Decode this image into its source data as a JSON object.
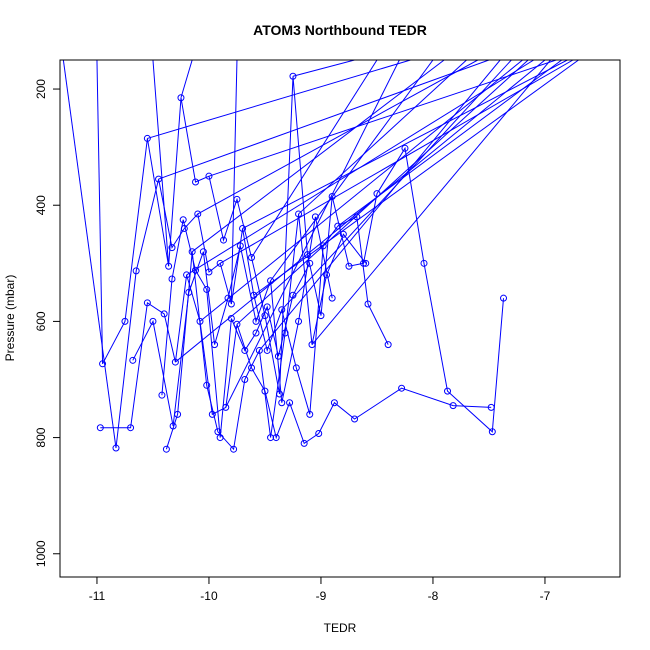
{
  "chart_data": {
    "type": "line",
    "title": "ATOM3 Northbound TEDR",
    "xlabel": "TEDR",
    "ylabel": "Pressure (mbar)",
    "xlim": [
      -11.33,
      -6.33
    ],
    "ylim": [
      1040,
      150
    ],
    "y_inverted": true,
    "x_ticks": [
      {
        "value": -11,
        "label": "-11"
      },
      {
        "value": -10,
        "label": "-10"
      },
      {
        "value": -9,
        "label": "-9"
      },
      {
        "value": -8,
        "label": "-8"
      },
      {
        "value": -7,
        "label": "-7"
      }
    ],
    "y_ticks": [
      {
        "value": 200,
        "label": "200"
      },
      {
        "value": 400,
        "label": "400"
      },
      {
        "value": 600,
        "label": "600"
      },
      {
        "value": 800,
        "label": "800"
      },
      {
        "value": 1000,
        "label": "1000"
      }
    ],
    "grid": false,
    "legend": "none",
    "series_color": "#0000ff",
    "marker": "open-circle",
    "series": [
      {
        "points": [
          {
            "x": -10.95,
            "y": 673
          },
          {
            "x": -10.75,
            "y": 600
          },
          {
            "x": -10.55,
            "y": 285
          },
          {
            "x": -10.36,
            "y": 505
          },
          {
            "x": -10.25,
            "y": 215
          },
          {
            "x": -10.12,
            "y": 360
          },
          {
            "x": -10.0,
            "y": 350
          },
          {
            "x": -9.87,
            "y": 460
          },
          {
            "x": -9.75,
            "y": 390
          },
          {
            "x": -9.62,
            "y": 490
          },
          {
            "x": -9.5,
            "y": 590
          },
          {
            "x": -9.37,
            "y": 725
          },
          {
            "x": -9.25,
            "y": 178
          },
          {
            "x": -9.12,
            "y": 485
          },
          {
            "x": -9.0,
            "y": 590
          },
          {
            "x": -8.9,
            "y": 385
          },
          {
            "x": -8.75,
            "y": 505
          },
          {
            "x": -8.62,
            "y": 500
          },
          {
            "x": -8.5,
            "y": 380
          },
          {
            "x": -8.25,
            "y": 302
          },
          {
            "x": -8.08,
            "y": 500
          },
          {
            "x": -7.87,
            "y": 720
          },
          {
            "x": -7.47,
            "y": 790
          },
          {
            "x": -7.37,
            "y": 560
          }
        ]
      },
      {
        "points": [
          {
            "x": -10.97,
            "y": 783
          },
          {
            "x": -10.7,
            "y": 783
          },
          {
            "x": -10.55,
            "y": 568
          },
          {
            "x": -10.4,
            "y": 587
          },
          {
            "x": -10.3,
            "y": 670
          },
          {
            "x": -10.2,
            "y": 520
          },
          {
            "x": -10.08,
            "y": 600
          },
          {
            "x": -9.97,
            "y": 760
          },
          {
            "x": -9.85,
            "y": 748
          },
          {
            "x": -9.75,
            "y": 605
          },
          {
            "x": -9.62,
            "y": 680
          },
          {
            "x": -9.5,
            "y": 720
          },
          {
            "x": -9.4,
            "y": 800
          },
          {
            "x": -9.28,
            "y": 740
          },
          {
            "x": -9.15,
            "y": 810
          },
          {
            "x": -9.02,
            "y": 793
          },
          {
            "x": -8.88,
            "y": 740
          },
          {
            "x": -8.7,
            "y": 768
          },
          {
            "x": -8.28,
            "y": 715
          },
          {
            "x": -7.82,
            "y": 745
          },
          {
            "x": -7.48,
            "y": 748
          }
        ]
      },
      {
        "points": [
          {
            "x": -10.83,
            "y": 818
          },
          {
            "x": -10.65,
            "y": 513
          },
          {
            "x": -10.45,
            "y": 355
          },
          {
            "x": -10.33,
            "y": 473
          },
          {
            "x": -10.22,
            "y": 440
          },
          {
            "x": -10.1,
            "y": 415
          },
          {
            "x": -10.0,
            "y": 515
          },
          {
            "x": -9.9,
            "y": 500
          },
          {
            "x": -9.8,
            "y": 570
          },
          {
            "x": -9.7,
            "y": 440
          },
          {
            "x": -9.6,
            "y": 555
          },
          {
            "x": -9.48,
            "y": 650
          },
          {
            "x": -9.35,
            "y": 580
          },
          {
            "x": -9.22,
            "y": 680
          },
          {
            "x": -9.1,
            "y": 760
          },
          {
            "x": -8.98,
            "y": 470
          },
          {
            "x": -8.85,
            "y": 436
          },
          {
            "x": -8.68,
            "y": 420
          },
          {
            "x": -8.58,
            "y": 570
          },
          {
            "x": -8.4,
            "y": 640
          }
        ]
      },
      {
        "points": [
          {
            "x": -10.38,
            "y": 820
          },
          {
            "x": -10.28,
            "y": 760
          },
          {
            "x": -10.15,
            "y": 480
          },
          {
            "x": -10.02,
            "y": 710
          },
          {
            "x": -9.92,
            "y": 790
          },
          {
            "x": -9.78,
            "y": 820
          },
          {
            "x": -9.68,
            "y": 700
          },
          {
            "x": -9.55,
            "y": 650
          },
          {
            "x": -9.45,
            "y": 800
          },
          {
            "x": -9.32,
            "y": 620
          },
          {
            "x": -9.2,
            "y": 415
          },
          {
            "x": -9.08,
            "y": 640
          },
          {
            "x": -8.95,
            "y": 520
          },
          {
            "x": -8.8,
            "y": 450
          },
          {
            "x": -8.6,
            "y": 500
          }
        ]
      },
      {
        "points": [
          {
            "x": -10.68,
            "y": 667
          },
          {
            "x": -10.5,
            "y": 600
          },
          {
            "x": -10.32,
            "y": 780
          },
          {
            "x": -10.18,
            "y": 550
          },
          {
            "x": -10.05,
            "y": 480
          },
          {
            "x": -9.95,
            "y": 640
          },
          {
            "x": -9.83,
            "y": 560
          },
          {
            "x": -9.72,
            "y": 470
          },
          {
            "x": -9.58,
            "y": 600
          },
          {
            "x": -9.45,
            "y": 530
          },
          {
            "x": -9.35,
            "y": 740
          },
          {
            "x": -9.2,
            "y": 600
          },
          {
            "x": -9.05,
            "y": 420
          },
          {
            "x": -8.9,
            "y": 560
          }
        ]
      },
      {
        "points": [
          {
            "x": -10.42,
            "y": 727
          },
          {
            "x": -10.33,
            "y": 527
          },
          {
            "x": -10.23,
            "y": 425
          },
          {
            "x": -10.12,
            "y": 512
          },
          {
            "x": -10.02,
            "y": 545
          },
          {
            "x": -9.9,
            "y": 800
          },
          {
            "x": -9.8,
            "y": 595
          },
          {
            "x": -9.68,
            "y": 650
          },
          {
            "x": -9.58,
            "y": 620
          },
          {
            "x": -9.48,
            "y": 575
          },
          {
            "x": -9.38,
            "y": 660
          },
          {
            "x": -9.25,
            "y": 555
          },
          {
            "x": -9.1,
            "y": 500
          }
        ]
      }
    ],
    "overflow_segments": [
      {
        "from": {
          "x": -10.0,
          "y": 350
        },
        "to": {
          "x": -6.9,
          "y": 150
        }
      },
      {
        "from": {
          "x": -10.2,
          "y": 520
        },
        "to": {
          "x": -7.1,
          "y": 150
        }
      },
      {
        "from": {
          "x": -9.7,
          "y": 440
        },
        "to": {
          "x": -6.8,
          "y": 150
        }
      },
      {
        "from": {
          "x": -9.85,
          "y": 748
        },
        "to": {
          "x": -8.3,
          "y": 150
        }
      },
      {
        "from": {
          "x": -10.1,
          "y": 415
        },
        "to": {
          "x": -7.6,
          "y": 150
        }
      },
      {
        "from": {
          "x": -9.55,
          "y": 650
        },
        "to": {
          "x": -7.4,
          "y": 150
        }
      },
      {
        "from": {
          "x": -10.3,
          "y": 670
        },
        "to": {
          "x": -7.0,
          "y": 150
        }
      },
      {
        "from": {
          "x": -9.2,
          "y": 415
        },
        "to": {
          "x": -7.7,
          "y": 150
        }
      },
      {
        "from": {
          "x": -9.45,
          "y": 530
        },
        "to": {
          "x": -8.0,
          "y": 150
        }
      },
      {
        "from": {
          "x": -10.08,
          "y": 600
        },
        "to": {
          "x": -7.2,
          "y": 150
        }
      },
      {
        "from": {
          "x": -9.62,
          "y": 490
        },
        "to": {
          "x": -8.5,
          "y": 150
        }
      },
      {
        "from": {
          "x": -9.9,
          "y": 500
        },
        "to": {
          "x": -6.75,
          "y": 150
        }
      },
      {
        "from": {
          "x": -10.45,
          "y": 355
        },
        "to": {
          "x": -7.5,
          "y": 150
        }
      },
      {
        "from": {
          "x": -9.35,
          "y": 580
        },
        "to": {
          "x": -7.3,
          "y": 150
        }
      },
      {
        "from": {
          "x": -10.55,
          "y": 285
        },
        "to": {
          "x": -8.2,
          "y": 150
        }
      },
      {
        "from": {
          "x": -9.75,
          "y": 605
        },
        "to": {
          "x": -7.15,
          "y": 150
        }
      },
      {
        "from": {
          "x": -10.15,
          "y": 480
        },
        "to": {
          "x": -7.9,
          "y": 150
        }
      },
      {
        "from": {
          "x": -9.08,
          "y": 640
        },
        "to": {
          "x": -6.95,
          "y": 150
        }
      },
      {
        "from": {
          "x": -10.25,
          "y": 215
        },
        "to": {
          "x": -10.15,
          "y": 150
        }
      },
      {
        "from": {
          "x": -10.95,
          "y": 673
        },
        "to": {
          "x": -11.0,
          "y": 150
        }
      },
      {
        "from": {
          "x": -10.36,
          "y": 505
        },
        "to": {
          "x": -10.5,
          "y": 150
        }
      },
      {
        "from": {
          "x": -9.25,
          "y": 178
        },
        "to": {
          "x": -8.7,
          "y": 150
        }
      },
      {
        "from": {
          "x": -10.83,
          "y": 818
        },
        "to": {
          "x": -11.3,
          "y": 150
        }
      },
      {
        "from": {
          "x": -9.8,
          "y": 570
        },
        "to": {
          "x": -9.75,
          "y": 150
        }
      },
      {
        "from": {
          "x": -8.85,
          "y": 436
        },
        "to": {
          "x": -6.85,
          "y": 150
        }
      },
      {
        "from": {
          "x": -9.6,
          "y": 555
        },
        "to": {
          "x": -6.7,
          "y": 150
        }
      }
    ]
  },
  "colors": {
    "series": "#0000ff",
    "axis": "#000000",
    "background": "#ffffff"
  }
}
